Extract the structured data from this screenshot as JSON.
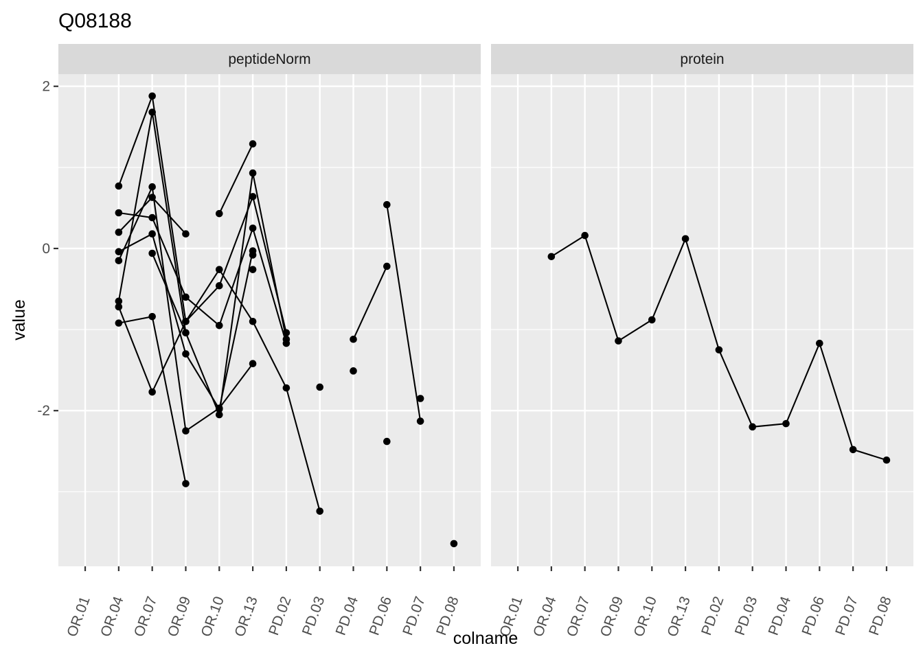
{
  "chart_data": {
    "type": "line",
    "title": "Q08188",
    "xlabel": "colname",
    "ylabel": "value",
    "categories": [
      "OR.01",
      "OR.04",
      "OR.07",
      "OR.09",
      "OR.10",
      "OR.13",
      "PD.02",
      "PD.03",
      "PD.04",
      "PD.06",
      "PD.07",
      "PD.08"
    ],
    "ylim": [
      -3.92,
      2.15
    ],
    "yticks": [
      -2,
      0,
      2
    ],
    "ytick_labels": [
      "-2",
      "0",
      "2"
    ],
    "grid": true,
    "legend": "none",
    "panels": [
      {
        "strip": "peptideNorm",
        "series": [
          {
            "points": [
              [
                "OR.04",
                0.77
              ],
              [
                "OR.07",
                1.88
              ],
              [
                "OR.09",
                -0.9
              ],
              [
                "OR.10",
                -0.46
              ],
              [
                "OR.13",
                0.64
              ],
              [
                "PD.02",
                -1.04
              ]
            ]
          },
          {
            "points": [
              [
                "OR.04",
                -0.65
              ],
              [
                "OR.07",
                1.68
              ],
              [
                "OR.09",
                -1.04
              ],
              [
                "OR.10",
                -2.05
              ],
              [
                "OR.13",
                0.93
              ],
              [
                "PD.02",
                -1.12
              ]
            ]
          },
          {
            "points": [
              [
                "OR.04",
                0.44
              ],
              [
                "OR.07",
                0.38
              ],
              [
                "OR.09",
                -0.6
              ],
              [
                "OR.10",
                -0.95
              ],
              [
                "OR.13",
                0.25
              ],
              [
                "PD.02",
                -1.17
              ]
            ]
          },
          {
            "points": [
              [
                "OR.04",
                0.2
              ],
              [
                "OR.07",
                0.63
              ],
              [
                "OR.09",
                0.18
              ]
            ]
          },
          {
            "points": [
              [
                "OR.04",
                -0.04
              ],
              [
                "OR.07",
                0.18
              ],
              [
                "OR.09",
                -1.3
              ],
              [
                "OR.10",
                -1.98
              ],
              [
                "OR.13",
                -0.03
              ]
            ]
          },
          {
            "points": [
              [
                "OR.04",
                -0.15
              ],
              [
                "OR.07",
                0.76
              ],
              [
                "OR.09",
                -2.25
              ],
              [
                "OR.10",
                -1.97
              ],
              [
                "OR.13",
                -1.42
              ]
            ]
          },
          {
            "points": [
              [
                "OR.04",
                -0.72
              ],
              [
                "OR.07",
                -1.77
              ],
              [
                "OR.09",
                -0.9
              ],
              [
                "OR.10",
                -0.26
              ],
              [
                "OR.13",
                -0.9
              ],
              [
                "PD.02",
                -1.72
              ],
              [
                "PD.03",
                -3.24
              ]
            ]
          },
          {
            "points": [
              [
                "OR.04",
                -0.92
              ],
              [
                "OR.07",
                -0.84
              ],
              [
                "OR.09",
                -2.9
              ]
            ]
          },
          {
            "points": [
              [
                "OR.07",
                -0.06
              ],
              [
                "OR.09",
                -1.04
              ]
            ]
          },
          {
            "points": [
              [
                "OR.10",
                0.43
              ],
              [
                "OR.13",
                1.29
              ]
            ]
          },
          {
            "points": [
              [
                "OR.13",
                -0.08
              ]
            ]
          },
          {
            "points": [
              [
                "OR.13",
                -0.26
              ]
            ]
          },
          {
            "points": [
              [
                "PD.03",
                -1.71
              ]
            ]
          },
          {
            "points": [
              [
                "PD.04",
                -1.12
              ],
              [
                "PD.06",
                -0.22
              ]
            ]
          },
          {
            "points": [
              [
                "PD.04",
                -1.51
              ]
            ]
          },
          {
            "points": [
              [
                "PD.06",
                0.54
              ],
              [
                "PD.07",
                -2.13
              ]
            ]
          },
          {
            "points": [
              [
                "PD.06",
                -2.38
              ]
            ]
          },
          {
            "points": [
              [
                "PD.07",
                -1.85
              ]
            ]
          },
          {
            "points": [
              [
                "PD.08",
                -3.64
              ]
            ]
          }
        ]
      },
      {
        "strip": "protein",
        "series": [
          {
            "points": [
              [
                "OR.04",
                -0.1
              ],
              [
                "OR.07",
                0.16
              ],
              [
                "OR.09",
                -1.14
              ],
              [
                "OR.10",
                -0.88
              ],
              [
                "OR.13",
                0.12
              ],
              [
                "PD.02",
                -1.25
              ],
              [
                "PD.03",
                -2.2
              ],
              [
                "PD.04",
                -2.16
              ],
              [
                "PD.06",
                -1.17
              ],
              [
                "PD.07",
                -2.48
              ],
              [
                "PD.08",
                -2.61
              ]
            ]
          }
        ]
      }
    ]
  },
  "colors": {
    "panel_bg": "#EBEBEB",
    "strip_bg": "#D9D9D9",
    "grid": "#FFFFFF",
    "series": "#000000",
    "text": "#1A1A1A",
    "tick_text": "#4D4D4D"
  }
}
